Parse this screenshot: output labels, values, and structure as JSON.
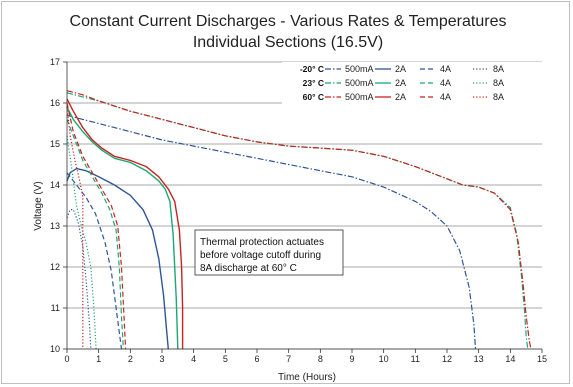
{
  "chart_data": {
    "type": "line",
    "title": "Constant Current Discharges - Various Rates & Temperatures",
    "subtitle": "Individual Sections (16.5V)",
    "xlabel": "Time (Hours)",
    "ylabel": "Voltage (V)",
    "xlim": [
      0,
      15
    ],
    "ylim": [
      10,
      17
    ],
    "xticks": [
      0,
      1,
      2,
      3,
      4,
      5,
      6,
      7,
      8,
      9,
      10,
      11,
      12,
      13,
      14,
      15
    ],
    "yticks": [
      10,
      11,
      12,
      13,
      14,
      15,
      16,
      17
    ],
    "grid": "horizontal",
    "legend": {
      "placement": "top-right",
      "rows": [
        {
          "label": "-20° C",
          "color": "#2E5597"
        },
        {
          "label": "23° C",
          "color": "#1BA776"
        },
        {
          "label": "60° C",
          "color": "#C8231F"
        }
      ],
      "columns": [
        "500mA",
        "2A",
        "4A",
        "8A"
      ],
      "dash": [
        "dashdot",
        "solid",
        "dash",
        "dot"
      ]
    },
    "annotation": [
      "Thermal protection actuates",
      "before voltage cutoff during",
      "8A discharge at 60° C"
    ],
    "series": [
      {
        "temp": "-20° C",
        "rate": "500mA",
        "color": "#2E5597",
        "dash": "dashdot",
        "x": [
          0,
          0.5,
          1,
          2,
          3,
          4,
          5,
          6,
          7,
          8,
          9,
          10,
          11,
          11.5,
          12,
          12.4,
          12.7,
          12.85,
          12.9
        ],
        "y": [
          15.7,
          15.6,
          15.5,
          15.3,
          15.1,
          14.95,
          14.8,
          14.65,
          14.5,
          14.35,
          14.2,
          13.95,
          13.6,
          13.35,
          13.0,
          12.4,
          11.5,
          10.6,
          10.0
        ]
      },
      {
        "temp": "-20° C",
        "rate": "2A",
        "color": "#2E5597",
        "dash": "solid",
        "x": [
          0,
          0.1,
          0.3,
          0.6,
          1,
          1.5,
          2,
          2.4,
          2.7,
          2.9,
          3.05,
          3.15,
          3.2
        ],
        "y": [
          14.1,
          14.3,
          14.4,
          14.35,
          14.2,
          14.0,
          13.75,
          13.4,
          12.9,
          12.2,
          11.3,
          10.4,
          10.0
        ]
      },
      {
        "temp": "-20° C",
        "rate": "4A",
        "color": "#2E5597",
        "dash": "dash",
        "x": [
          0,
          0.1,
          0.3,
          0.6,
          0.9,
          1.2,
          1.4,
          1.55,
          1.65,
          1.72
        ],
        "y": [
          14.3,
          14.2,
          14.0,
          13.7,
          13.3,
          12.6,
          11.9,
          11.0,
          10.4,
          10.0
        ]
      },
      {
        "temp": "-20° C",
        "rate": "8A",
        "color": "#2E5597",
        "dash": "dot",
        "x": [
          0,
          0.1,
          0.2,
          0.35,
          0.5,
          0.6,
          0.7,
          0.75
        ],
        "y": [
          13.2,
          13.4,
          13.4,
          13.1,
          12.5,
          11.7,
          10.7,
          10.0
        ]
      },
      {
        "temp": "23° C",
        "rate": "500mA",
        "color": "#1BA776",
        "dash": "dashdot",
        "x": [
          0,
          0.5,
          1,
          2,
          3,
          4,
          5,
          6,
          7,
          8,
          9,
          10,
          11,
          12,
          12.5,
          13,
          13.5,
          14,
          14.2,
          14.35,
          14.45,
          14.5,
          14.55
        ],
        "y": [
          16.25,
          16.15,
          16.05,
          15.8,
          15.6,
          15.4,
          15.2,
          15.05,
          14.95,
          14.9,
          14.85,
          14.7,
          14.45,
          14.15,
          14.0,
          13.95,
          13.8,
          13.45,
          12.8,
          11.8,
          10.9,
          10.3,
          10.0
        ]
      },
      {
        "temp": "23° C",
        "rate": "2A",
        "color": "#1BA776",
        "dash": "solid",
        "x": [
          0,
          0.2,
          0.5,
          0.8,
          1.1,
          1.5,
          2,
          2.5,
          2.9,
          3.1,
          3.25,
          3.35,
          3.45,
          3.5
        ],
        "y": [
          15.9,
          15.6,
          15.3,
          15.05,
          14.85,
          14.65,
          14.55,
          14.35,
          14.1,
          13.9,
          13.6,
          12.8,
          11.2,
          10.0
        ]
      },
      {
        "temp": "23° C",
        "rate": "4A",
        "color": "#1BA776",
        "dash": "dash",
        "x": [
          0,
          0.2,
          0.5,
          0.8,
          1.1,
          1.35,
          1.55,
          1.65,
          1.72,
          1.78
        ],
        "y": [
          15.6,
          15.2,
          14.6,
          14.2,
          13.8,
          13.4,
          12.9,
          12.0,
          10.8,
          10.0
        ]
      },
      {
        "temp": "23° C",
        "rate": "8A",
        "color": "#1BA776",
        "dash": "dot",
        "x": [
          0,
          0.15,
          0.3,
          0.45,
          0.6,
          0.75,
          0.85,
          0.92
        ],
        "y": [
          15.2,
          14.4,
          13.5,
          13.0,
          12.6,
          12.0,
          11.0,
          10.0
        ]
      },
      {
        "temp": "60° C",
        "rate": "500mA",
        "color": "#C8231F",
        "dash": "dashdot",
        "x": [
          0,
          0.5,
          1,
          2,
          3,
          4,
          5,
          6,
          7,
          8,
          9,
          10,
          11,
          12,
          12.5,
          13,
          13.5,
          14,
          14.25,
          14.4,
          14.5,
          14.6,
          14.65
        ],
        "y": [
          16.3,
          16.2,
          16.05,
          15.8,
          15.6,
          15.4,
          15.2,
          15.05,
          14.95,
          14.9,
          14.85,
          14.7,
          14.45,
          14.15,
          14.0,
          13.95,
          13.8,
          13.4,
          12.6,
          11.6,
          10.8,
          10.2,
          10.0
        ]
      },
      {
        "temp": "60° C",
        "rate": "2A",
        "color": "#C8231F",
        "dash": "solid",
        "x": [
          0,
          0.2,
          0.5,
          0.8,
          1.1,
          1.5,
          2,
          2.5,
          2.9,
          3.2,
          3.4,
          3.55,
          3.62,
          3.65,
          3.65
        ],
        "y": [
          16.1,
          15.8,
          15.4,
          15.1,
          14.9,
          14.7,
          14.6,
          14.45,
          14.2,
          13.9,
          13.6,
          12.9,
          12.0,
          11.0,
          10.0
        ]
      },
      {
        "temp": "60° C",
        "rate": "4A",
        "color": "#C8231F",
        "dash": "dash",
        "x": [
          0,
          0.2,
          0.5,
          0.8,
          1.1,
          1.4,
          1.6,
          1.72,
          1.8,
          1.85
        ],
        "y": [
          16.0,
          15.3,
          14.7,
          14.3,
          13.9,
          13.5,
          13.0,
          12.0,
          10.8,
          10.0
        ]
      },
      {
        "temp": "60° C",
        "rate": "8A",
        "color": "#C8231F",
        "dash": "dot",
        "x": [
          0,
          0.1,
          0.25,
          0.4,
          0.5,
          0.5
        ],
        "y": [
          15.9,
          15.2,
          14.6,
          14.1,
          13.7,
          10.0
        ]
      }
    ]
  }
}
